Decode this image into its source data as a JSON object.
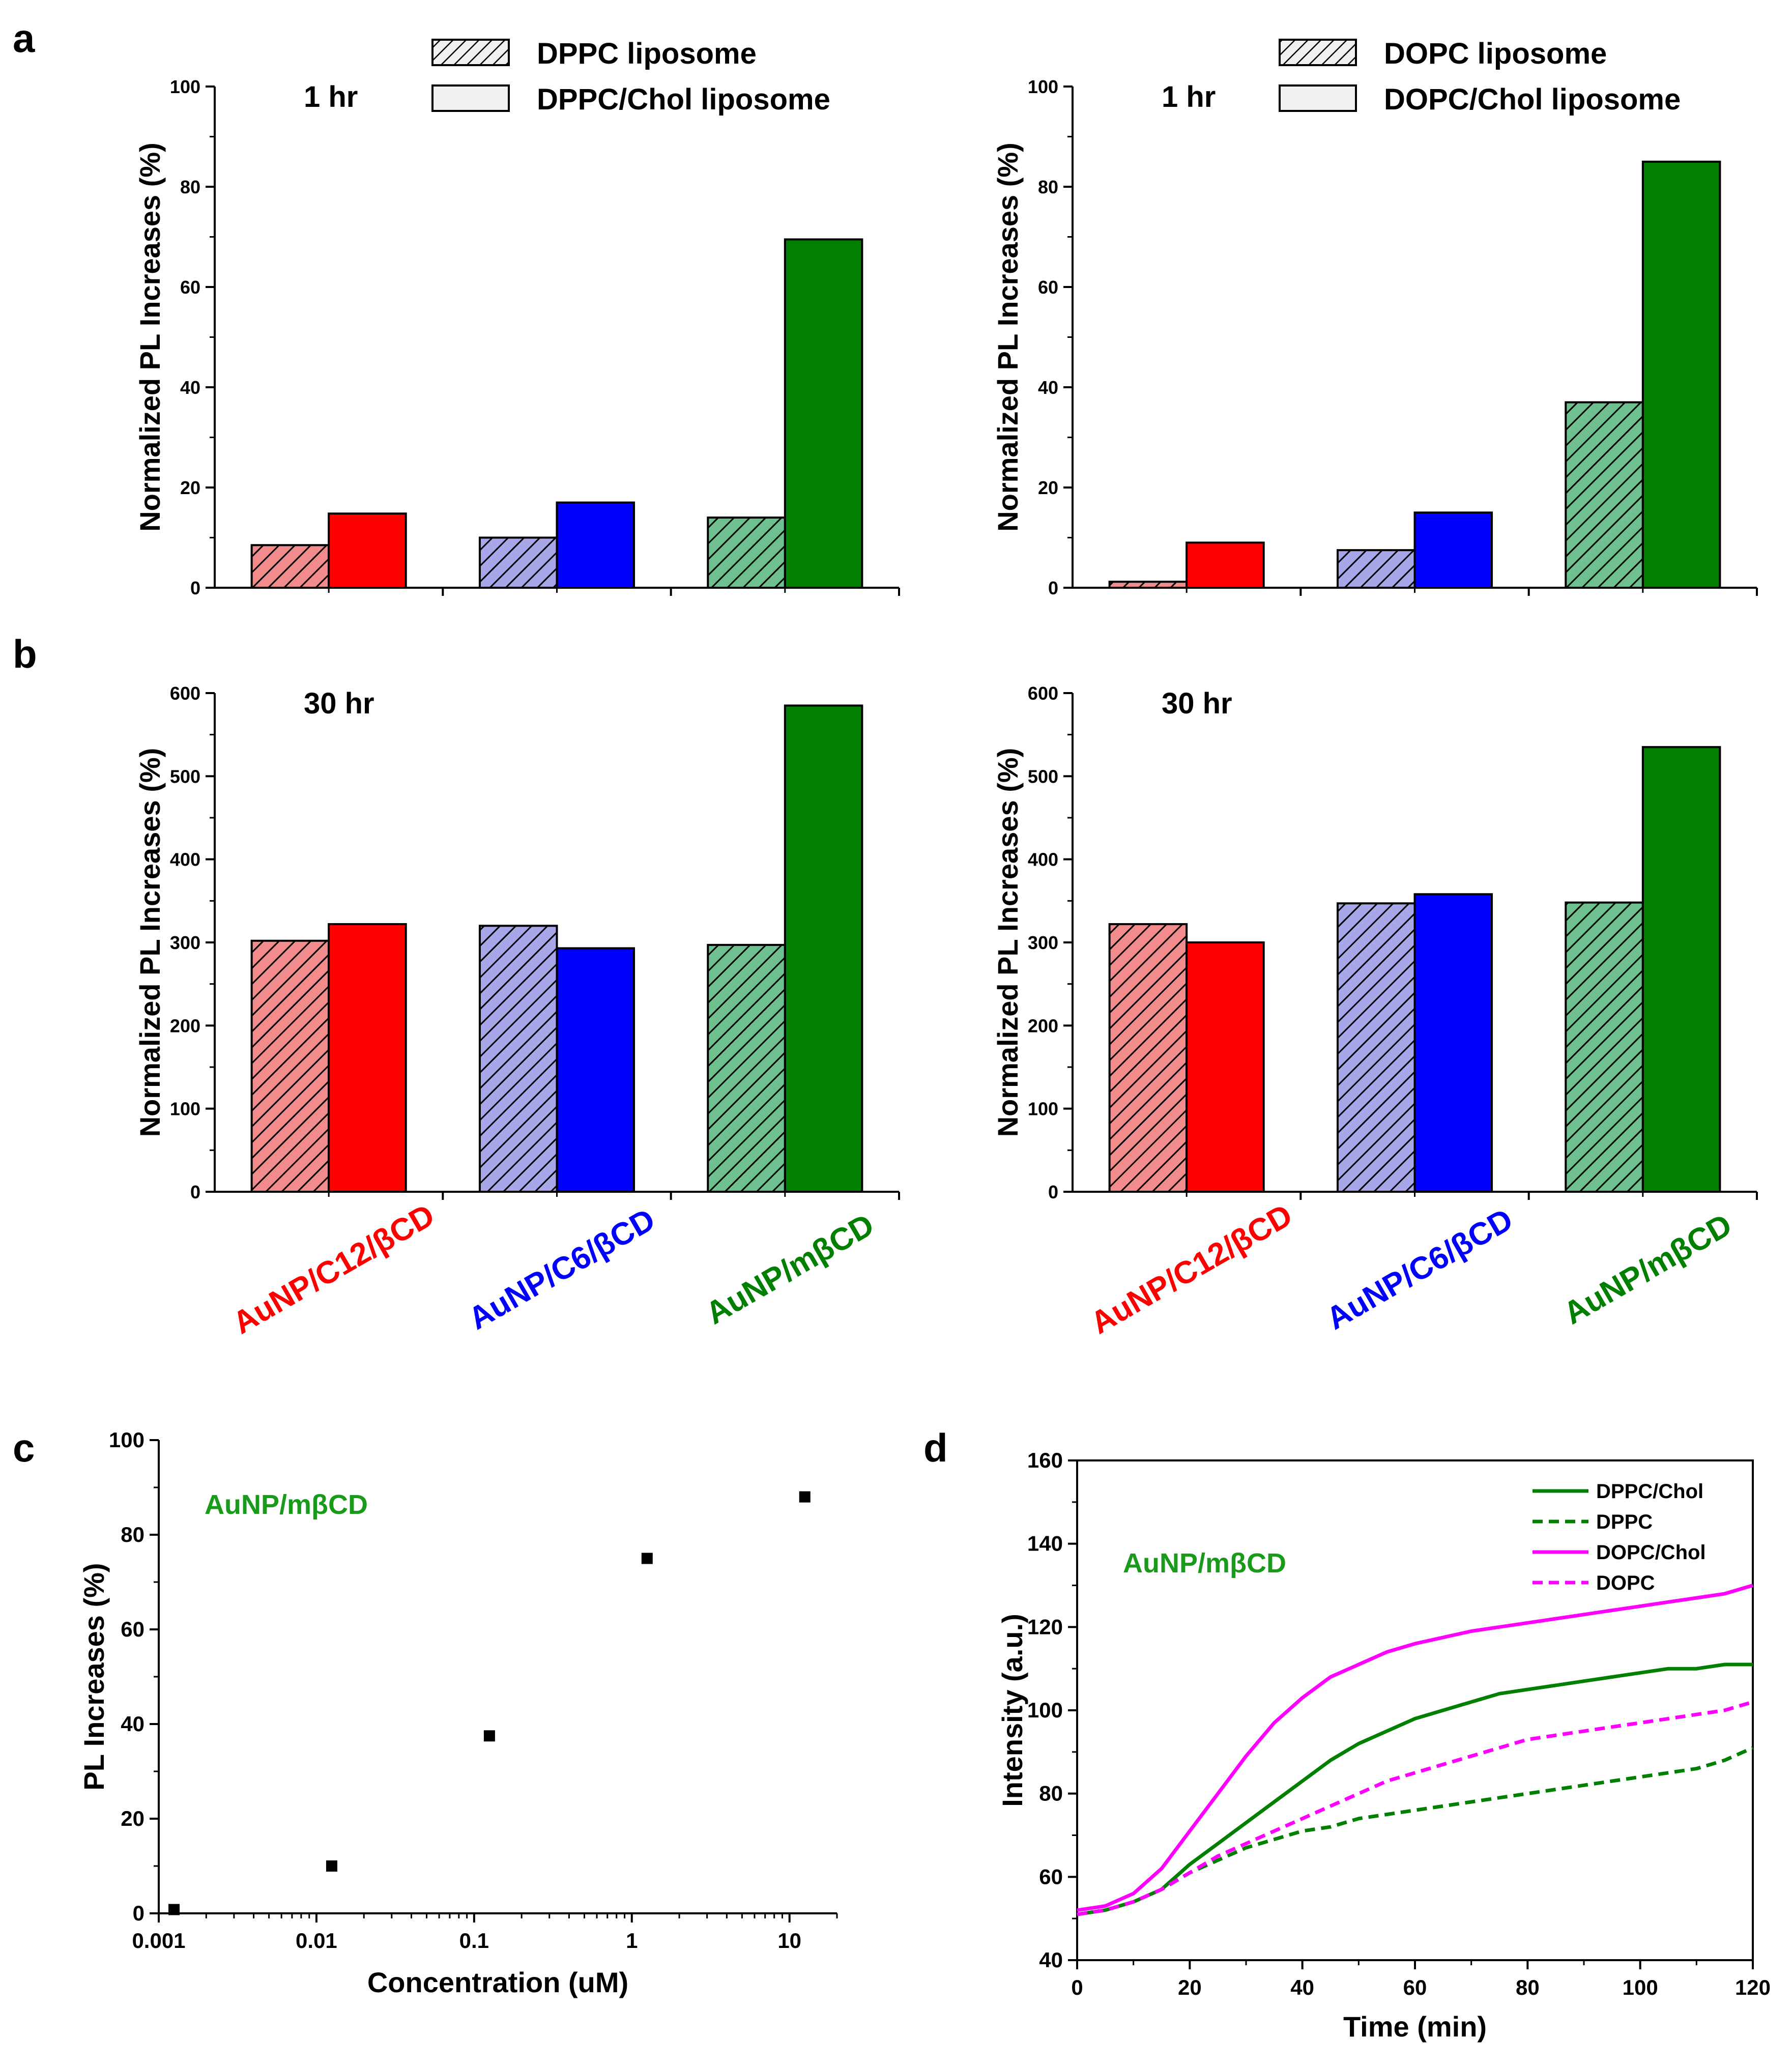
{
  "colors": {
    "red": "#ff0000",
    "blue": "#0000ff",
    "green": "#007f00",
    "red_hatch": "#f28b8b",
    "blue_hatch": "#a6a6e8",
    "green_hatch": "#6fc08f",
    "magenta": "#ff00ff",
    "label_green": "#1a9a1a"
  },
  "panel_letters": [
    "a",
    "b",
    "c",
    "d"
  ],
  "bar_legends": [
    {
      "hatched": "DPPC liposome",
      "solid": "DPPC/Chol liposome"
    },
    {
      "hatched": "DOPC liposome",
      "solid": "DOPC/Chol liposome"
    }
  ],
  "category_labels": [
    "AuNP/C12/βCD",
    "AuNP/C6/βCD",
    "AuNP/mβCD"
  ],
  "chart_data": [
    {
      "id": "a-left",
      "type": "bar",
      "title": "1 hr",
      "ylabel": "Normalized PL Increases (%)",
      "ylim": [
        0,
        100
      ],
      "yticks": [
        0,
        20,
        40,
        60,
        80,
        100
      ],
      "categories": [
        "AuNP/C12/βCD",
        "AuNP/C6/βCD",
        "AuNP/mβCD"
      ],
      "series": [
        {
          "name": "DPPC liposome",
          "values": [
            8.5,
            10,
            14
          ]
        },
        {
          "name": "DPPC/Chol liposome",
          "values": [
            14.8,
            17,
            69.5
          ]
        }
      ]
    },
    {
      "id": "a-right",
      "type": "bar",
      "title": "1 hr",
      "ylabel": "Normalized PL Increases (%)",
      "ylim": [
        0,
        100
      ],
      "yticks": [
        0,
        20,
        40,
        60,
        80,
        100
      ],
      "categories": [
        "AuNP/C12/βCD",
        "AuNP/C6/βCD",
        "AuNP/mβCD"
      ],
      "series": [
        {
          "name": "DOPC liposome",
          "values": [
            1.2,
            7.5,
            37
          ]
        },
        {
          "name": "DOPC/Chol liposome",
          "values": [
            9,
            15,
            85
          ]
        }
      ]
    },
    {
      "id": "b-left",
      "type": "bar",
      "title": "30 hr",
      "ylabel": "Normalized PL Increases (%)",
      "ylim": [
        0,
        600
      ],
      "yticks": [
        0,
        100,
        200,
        300,
        400,
        500,
        600
      ],
      "categories": [
        "AuNP/C12/βCD",
        "AuNP/C6/βCD",
        "AuNP/mβCD"
      ],
      "series": [
        {
          "name": "DPPC liposome",
          "values": [
            302,
            320,
            297
          ]
        },
        {
          "name": "DPPC/Chol liposome",
          "values": [
            322,
            293,
            585
          ]
        }
      ]
    },
    {
      "id": "b-right",
      "type": "bar",
      "title": "30 hr",
      "ylabel": "Normalized PL Increases (%)",
      "ylim": [
        0,
        600
      ],
      "yticks": [
        0,
        100,
        200,
        300,
        400,
        500,
        600
      ],
      "categories": [
        "AuNP/C12/βCD",
        "AuNP/C6/βCD",
        "AuNP/mβCD"
      ],
      "series": [
        {
          "name": "DOPC liposome",
          "values": [
            322,
            347,
            348
          ]
        },
        {
          "name": "DOPC/Chol liposome",
          "values": [
            300,
            358,
            535
          ]
        }
      ]
    },
    {
      "id": "c",
      "type": "scatter",
      "title": "AuNP/mβCD",
      "xlabel": "Concentration (uM)",
      "ylabel": "PL Increases (%)",
      "xscale": "log",
      "xlim": [
        0.001,
        20
      ],
      "ylim": [
        0,
        100
      ],
      "xticks": [
        0.001,
        0.01,
        0.1,
        1,
        10
      ],
      "xtick_labels": [
        "0.001",
        "0.01",
        "0.1",
        "1",
        "10"
      ],
      "yticks": [
        0,
        20,
        40,
        60,
        80,
        100
      ],
      "points": [
        [
          0.00125,
          0.8
        ],
        [
          0.0125,
          10
        ],
        [
          0.125,
          37.5
        ],
        [
          1.25,
          75
        ],
        [
          12.5,
          88
        ]
      ]
    },
    {
      "id": "d",
      "type": "line",
      "title": "AuNP/mβCD",
      "xlabel": "Time (min)",
      "ylabel": "Intensity (a.u.)",
      "xlim": [
        0,
        120
      ],
      "ylim": [
        40,
        160
      ],
      "xticks": [
        0,
        20,
        40,
        60,
        80,
        100,
        120
      ],
      "yticks": [
        40,
        60,
        80,
        100,
        120,
        140,
        160
      ],
      "legend_position": "top-right",
      "series": [
        {
          "name": "DPPC/Chol",
          "style": "solid",
          "color": "green",
          "x": [
            0,
            5,
            10,
            15,
            20,
            25,
            30,
            35,
            40,
            45,
            50,
            55,
            60,
            65,
            70,
            75,
            80,
            85,
            90,
            95,
            100,
            105,
            110,
            115,
            120
          ],
          "y": [
            51,
            52,
            54,
            57,
            63,
            68,
            73,
            78,
            83,
            88,
            92,
            95,
            98,
            100,
            102,
            104,
            105,
            106,
            107,
            108,
            109,
            110,
            110,
            111,
            111
          ]
        },
        {
          "name": "DPPC",
          "style": "dashed",
          "color": "green",
          "x": [
            0,
            5,
            10,
            15,
            20,
            25,
            30,
            35,
            40,
            45,
            50,
            55,
            60,
            65,
            70,
            75,
            80,
            85,
            90,
            95,
            100,
            105,
            110,
            115,
            120
          ],
          "y": [
            51,
            52,
            54,
            57,
            61,
            64,
            67,
            69,
            71,
            72,
            74,
            75,
            76,
            77,
            78,
            79,
            80,
            81,
            82,
            83,
            84,
            85,
            86,
            88,
            91
          ]
        },
        {
          "name": "DOPC/Chol",
          "style": "solid",
          "color": "magenta",
          "x": [
            0,
            5,
            10,
            15,
            20,
            25,
            30,
            35,
            40,
            45,
            50,
            55,
            60,
            65,
            70,
            75,
            80,
            85,
            90,
            95,
            100,
            105,
            110,
            115,
            120
          ],
          "y": [
            52,
            53,
            56,
            62,
            71,
            80,
            89,
            97,
            103,
            108,
            111,
            114,
            116,
            117.5,
            119,
            120,
            121,
            122,
            123,
            124,
            125,
            126,
            127,
            128,
            130
          ]
        },
        {
          "name": "DOPC",
          "style": "dashed",
          "color": "magenta",
          "x": [
            0,
            5,
            10,
            15,
            20,
            25,
            30,
            35,
            40,
            45,
            50,
            55,
            60,
            65,
            70,
            75,
            80,
            85,
            90,
            95,
            100,
            105,
            110,
            115,
            120
          ],
          "y": [
            51,
            52,
            54,
            57,
            61,
            65,
            68,
            71,
            74,
            77,
            80,
            83,
            85,
            87,
            89,
            91,
            93,
            94,
            95,
            96,
            97,
            98,
            99,
            100,
            102
          ]
        }
      ]
    }
  ]
}
